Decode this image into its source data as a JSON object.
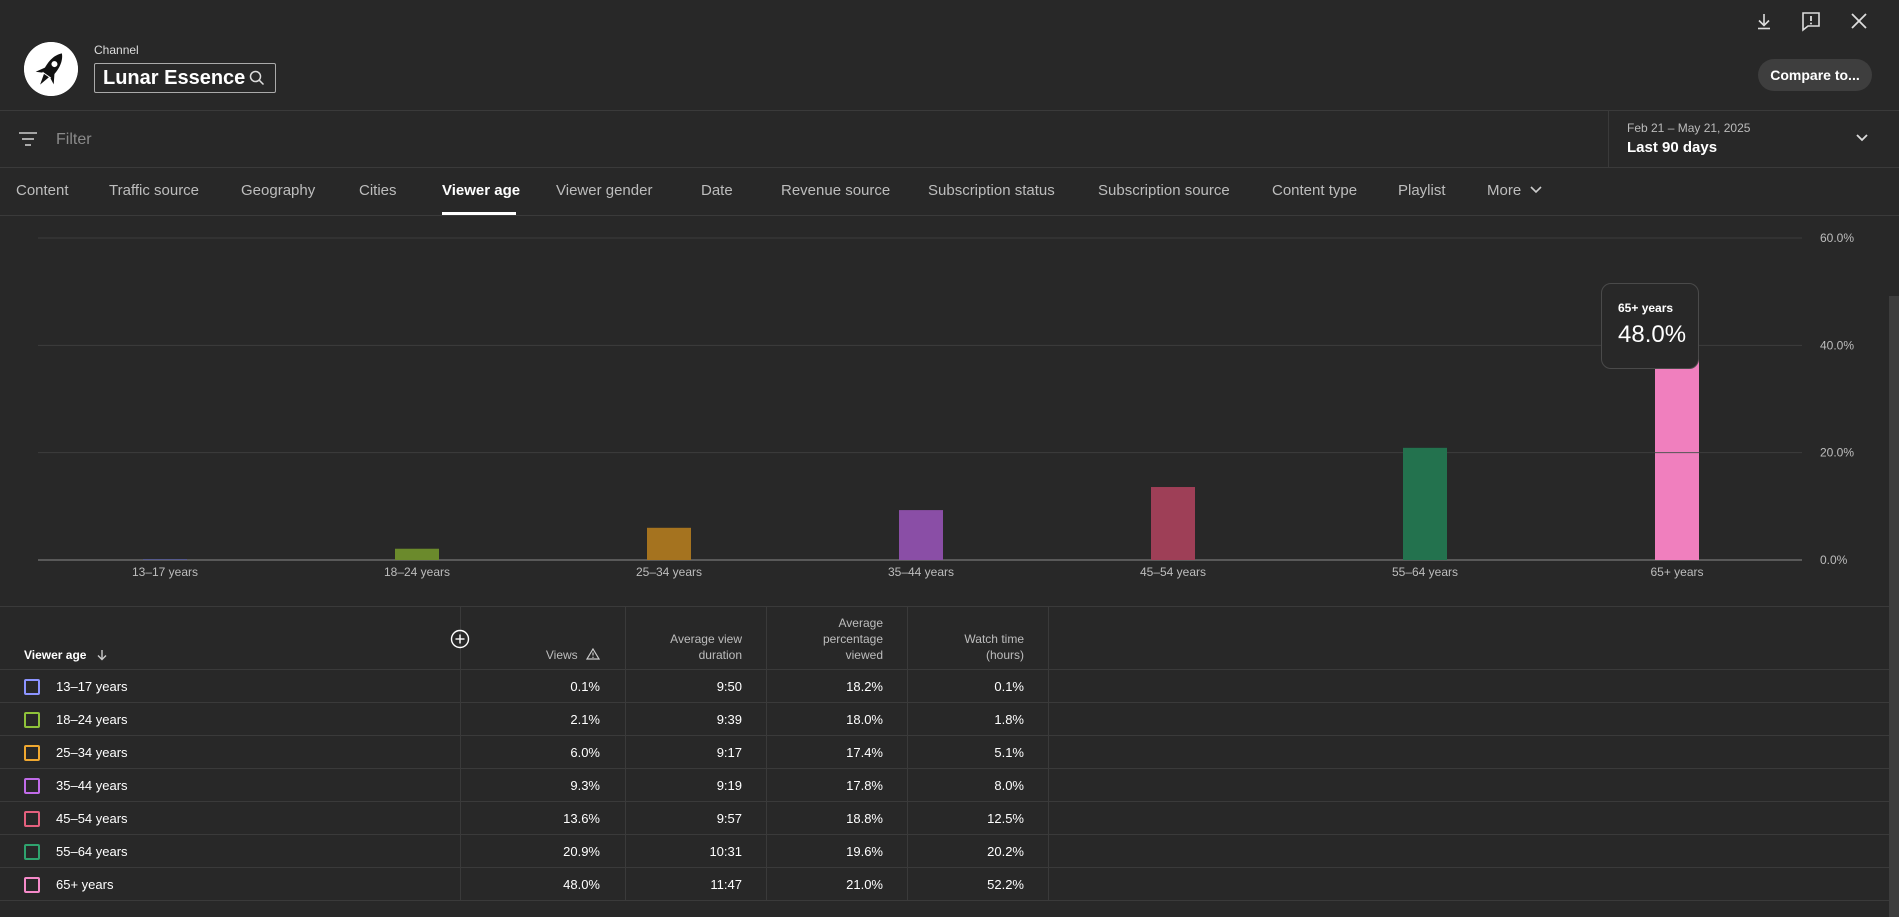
{
  "header": {
    "channel_label": "Channel",
    "channel_name": "Lunar Essence",
    "compare_label": "Compare to...",
    "icons": [
      "download-icon",
      "feedback-icon",
      "close-icon",
      "search-icon",
      "rocket-icon"
    ]
  },
  "filter": {
    "placeholder": "Filter",
    "date_range": "Feb 21 – May 21, 2025",
    "date_preset": "Last 90 days"
  },
  "tabs": [
    {
      "label": "Content"
    },
    {
      "label": "Traffic source"
    },
    {
      "label": "Geography"
    },
    {
      "label": "Cities"
    },
    {
      "label": "Viewer age",
      "active": true
    },
    {
      "label": "Viewer gender"
    },
    {
      "label": "Date"
    },
    {
      "label": "Revenue source"
    },
    {
      "label": "Subscription status"
    },
    {
      "label": "Subscription source"
    },
    {
      "label": "Content type"
    },
    {
      "label": "Playlist"
    },
    {
      "label": "More"
    }
  ],
  "chart_data": {
    "type": "bar",
    "categories": [
      "13–17 years",
      "18–24 years",
      "25–34 years",
      "35–44 years",
      "45–54 years",
      "55–64 years",
      "65+ years"
    ],
    "values": [
      0.1,
      2.1,
      6.0,
      9.3,
      13.6,
      20.9,
      48.0
    ],
    "colors": [
      "#7b83e0",
      "#6b8a2c",
      "#a5731f",
      "#8a4ea6",
      "#9e3f57",
      "#23724e",
      "#f07fbe"
    ],
    "yticks": [
      "0.0%",
      "20.0%",
      "40.0%",
      "60.0%"
    ],
    "ylim": [
      0,
      60
    ],
    "grid": true,
    "tooltip": {
      "label": "65+ years",
      "value": "48.0%"
    }
  },
  "table": {
    "columns": {
      "label": "Viewer age",
      "views": "Views",
      "avg_duration_1": "Average view",
      "avg_duration_2": "duration",
      "avg_pct_1": "Average",
      "avg_pct_2": "percentage",
      "avg_pct_3": "viewed",
      "watch_1": "Watch time",
      "watch_2": "(hours)"
    },
    "rows": [
      {
        "label": "13–17 years",
        "color": "#8c94ff",
        "views": "0.1%",
        "duration": "9:50",
        "pct": "18.2%",
        "watch": "0.1%"
      },
      {
        "label": "18–24 years",
        "color": "#8fc23a",
        "views": "2.1%",
        "duration": "9:39",
        "pct": "18.0%",
        "watch": "1.8%"
      },
      {
        "label": "25–34 years",
        "color": "#f0a830",
        "views": "6.0%",
        "duration": "9:17",
        "pct": "17.4%",
        "watch": "5.1%"
      },
      {
        "label": "35–44 years",
        "color": "#c06be8",
        "views": "9.3%",
        "duration": "9:19",
        "pct": "17.8%",
        "watch": "8.0%"
      },
      {
        "label": "45–54 years",
        "color": "#e4607d",
        "views": "13.6%",
        "duration": "9:57",
        "pct": "18.8%",
        "watch": "12.5%"
      },
      {
        "label": "55–64 years",
        "color": "#2fa36e",
        "views": "20.9%",
        "duration": "10:31",
        "pct": "19.6%",
        "watch": "20.2%"
      },
      {
        "label": "65+ years",
        "color": "#f58ac9",
        "views": "48.0%",
        "duration": "11:47",
        "pct": "21.0%",
        "watch": "52.2%"
      }
    ]
  }
}
